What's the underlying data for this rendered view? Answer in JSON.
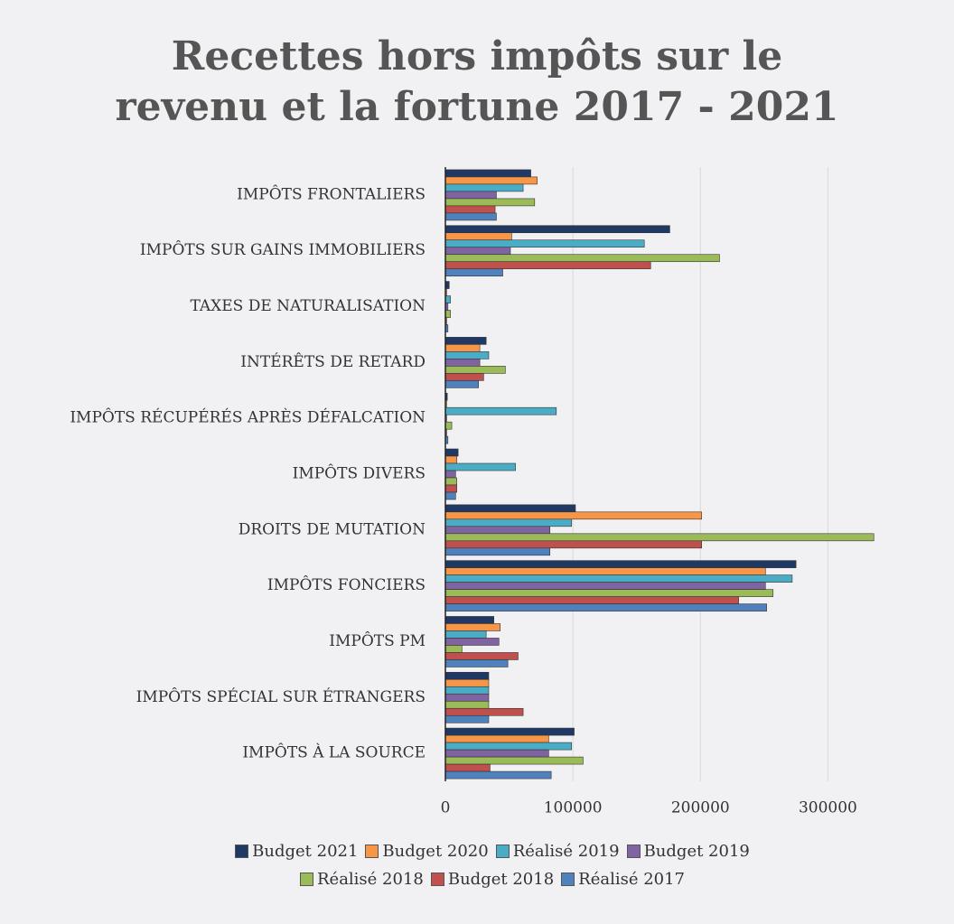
{
  "chart_data": {
    "type": "bar",
    "orientation": "horizontal",
    "title": "Recettes hors impôts sur le revenu et la fortune 2017 - 2021",
    "categories": [
      "IMPÔTS FRONTALIERS",
      "IMPÔTS SUR GAINS IMMOBILIERS",
      "TAXES DE NATURALISATION",
      "INTÉRÊTS DE RETARD",
      "IMPÔTS RÉCUPÉRÉS APRÈS DÉFALCATION",
      "IMPÔTS DIVERS",
      "DROITS DE MUTATION",
      "IMPÔTS FONCIERS",
      "IMPÔTS PM",
      "IMPÔTS SPÉCIAL SUR ÉTRANGERS",
      "IMPÔTS À LA SOURCE"
    ],
    "series": [
      {
        "name": "Budget 2021",
        "color": "#1f3864",
        "values": [
          67000,
          176000,
          3000,
          32000,
          1500,
          10000,
          102000,
          275000,
          38000,
          34000,
          101000
        ]
      },
      {
        "name": "Budget 2020",
        "color": "#f79646",
        "values": [
          72000,
          52000,
          1000,
          27000,
          1000,
          9000,
          201000,
          251000,
          43000,
          34000,
          81000
        ]
      },
      {
        "name": "Réalisé 2019",
        "color": "#4bacc6",
        "values": [
          61000,
          156000,
          4000,
          34000,
          87000,
          55000,
          99000,
          272000,
          32000,
          34000,
          99000
        ]
      },
      {
        "name": "Budget 2019",
        "color": "#8064a2",
        "values": [
          40000,
          51000,
          2000,
          27000,
          1000,
          8000,
          82000,
          251000,
          42000,
          34000,
          81000
        ]
      },
      {
        "name": "Réalisé 2018",
        "color": "#9bbb59",
        "values": [
          70000,
          215000,
          4000,
          47000,
          5000,
          9000,
          336000,
          257000,
          13000,
          34000,
          108000
        ]
      },
      {
        "name": "Budget 2018",
        "color": "#c0504d",
        "values": [
          39000,
          161000,
          1000,
          30000,
          1000,
          9000,
          201000,
          230000,
          57000,
          61000,
          35000
        ]
      },
      {
        "name": "Réalisé 2017",
        "color": "#4f81bd",
        "values": [
          40000,
          45000,
          2000,
          26000,
          2000,
          8000,
          82000,
          252000,
          49000,
          34000,
          83000
        ]
      }
    ],
    "xlim": [
      0,
      350000
    ],
    "xticks": [
      0,
      100000,
      200000,
      300000
    ],
    "grid": true,
    "legend": "bottom"
  }
}
